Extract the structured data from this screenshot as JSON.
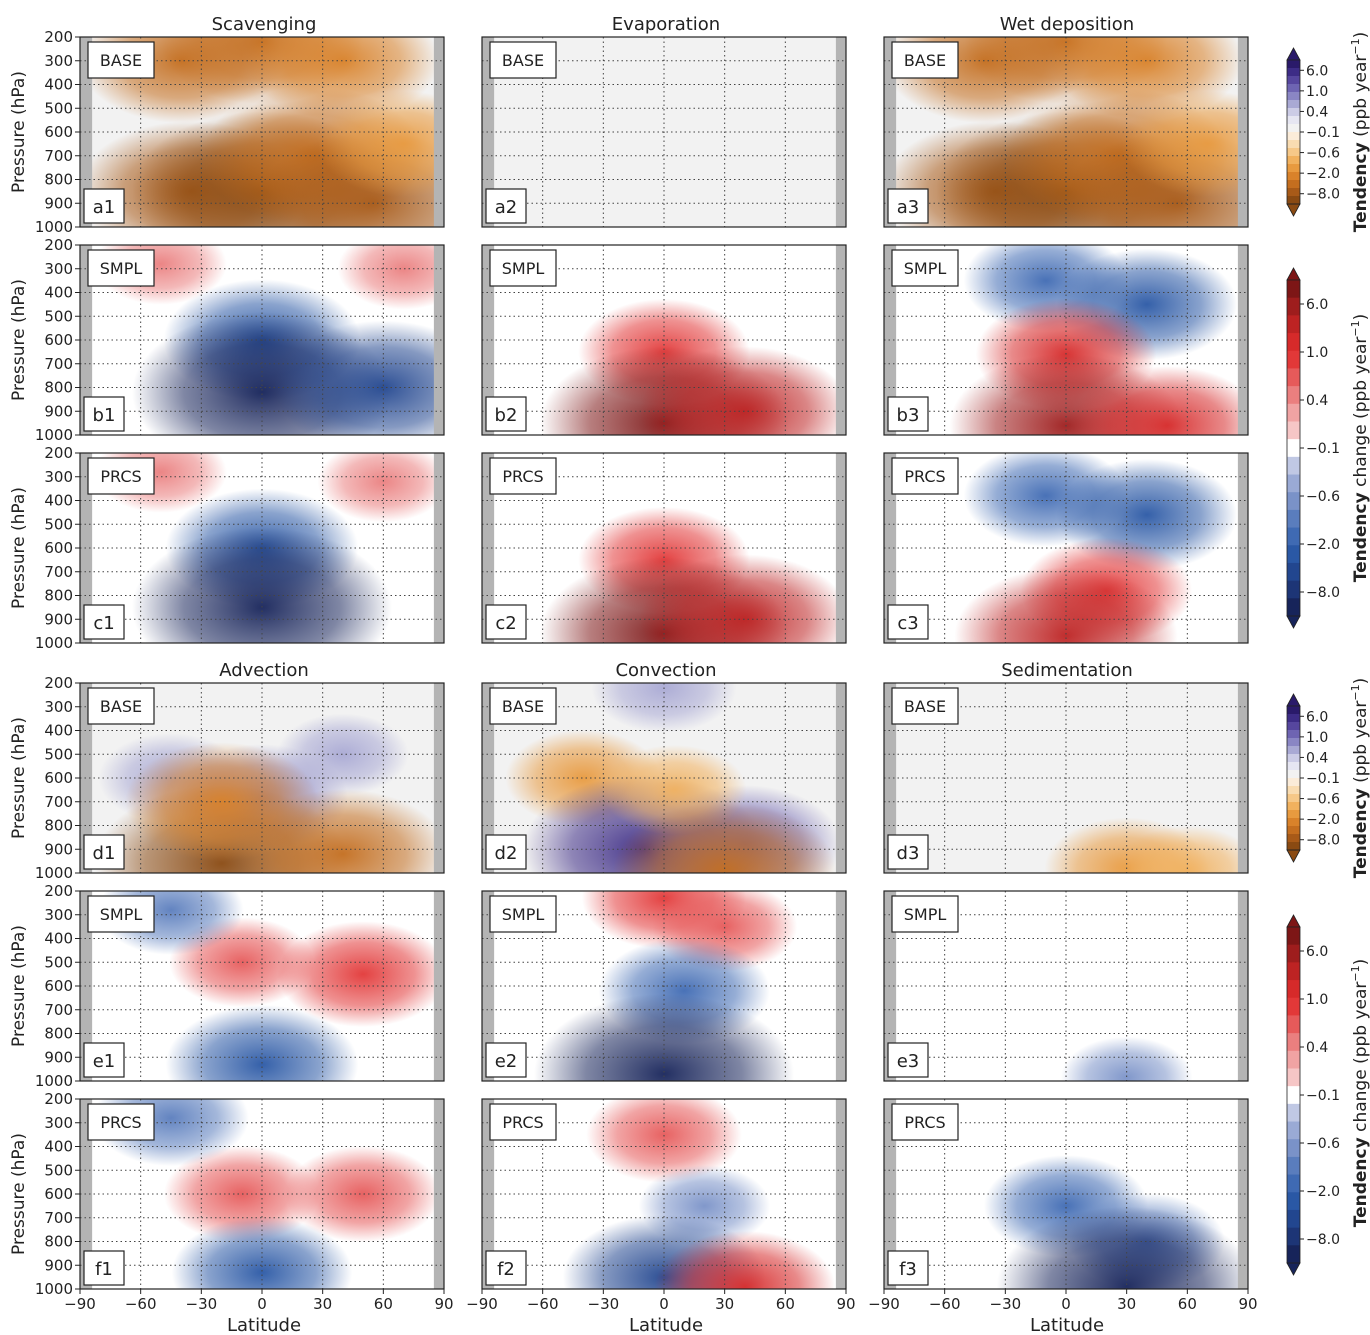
{
  "figure": {
    "x_axis_label": "Latitude",
    "y_axis_label": "Pressure (hPa)",
    "x_ticks": [
      -90,
      -60,
      -30,
      0,
      30,
      60,
      90
    ],
    "y_ticks": [
      200,
      300,
      400,
      500,
      600,
      700,
      800,
      900,
      1000
    ],
    "column_titles_top": [
      "Scavenging",
      "Evaporation",
      "Wet deposition"
    ],
    "column_titles_bottom": [
      "Advection",
      "Convection",
      "Sedimentation"
    ]
  },
  "colorbars": {
    "tendency_label_main": "Tendency",
    "tendency_label_unit": "(ppb year",
    "change_label_main": "Tendency",
    "change_label_rest": "change (ppb year",
    "unit_exponent": "−1",
    "unit_close": ")",
    "ticks": [
      "6.0",
      "1.0",
      "0.4",
      "−0.1",
      "−0.6",
      "−2.0",
      "−8.0"
    ],
    "tendency_colors": [
      "#8a4a12",
      "#a85a18",
      "#c46e1f",
      "#d9822a",
      "#e89a3f",
      "#f1b15e",
      "#f6c888",
      "#f9dcb1",
      "#fbecd9",
      "#f2f2f2",
      "#e6e6f2",
      "#cccce6",
      "#a9a9d4",
      "#8a86c4",
      "#6e64b2",
      "#56469e",
      "#3d2c86",
      "#2a1a6a"
    ],
    "change_colors": [
      "#17245a",
      "#1d3576",
      "#22468f",
      "#2a58a5",
      "#3f6ab3",
      "#5a7dbd",
      "#7a92c8",
      "#9aaad5",
      "#c0c8e4",
      "#ffffff",
      "#f6c6c6",
      "#f0a3a3",
      "#ea7f7f",
      "#e65a5a",
      "#e23838",
      "#d62a2a",
      "#bd2323",
      "#9e1d1d",
      "#7d1616"
    ]
  },
  "panels": [
    {
      "id": "a1",
      "scenario": "BASE",
      "scale": "tendency"
    },
    {
      "id": "a2",
      "scenario": "BASE",
      "scale": "tendency"
    },
    {
      "id": "a3",
      "scenario": "BASE",
      "scale": "tendency"
    },
    {
      "id": "b1",
      "scenario": "SMPL",
      "scale": "change"
    },
    {
      "id": "b2",
      "scenario": "SMPL",
      "scale": "change"
    },
    {
      "id": "b3",
      "scenario": "SMPL",
      "scale": "change"
    },
    {
      "id": "c1",
      "scenario": "PRCS",
      "scale": "change"
    },
    {
      "id": "c2",
      "scenario": "PRCS",
      "scale": "change"
    },
    {
      "id": "c3",
      "scenario": "PRCS",
      "scale": "change"
    },
    {
      "id": "d1",
      "scenario": "BASE",
      "scale": "tendency"
    },
    {
      "id": "d2",
      "scenario": "BASE",
      "scale": "tendency"
    },
    {
      "id": "d3",
      "scenario": "BASE",
      "scale": "tendency"
    },
    {
      "id": "e1",
      "scenario": "SMPL",
      "scale": "change"
    },
    {
      "id": "e2",
      "scenario": "SMPL",
      "scale": "change"
    },
    {
      "id": "e3",
      "scenario": "SMPL",
      "scale": "change"
    },
    {
      "id": "f1",
      "scenario": "PRCS",
      "scale": "change"
    },
    {
      "id": "f2",
      "scenario": "PRCS",
      "scale": "change"
    },
    {
      "id": "f3",
      "scenario": "PRCS",
      "scale": "change"
    }
  ],
  "chart_data": {
    "type": "heatmap",
    "title": "",
    "xlabel": "Latitude",
    "ylabel": "Pressure (hPa)",
    "xlim": [
      -90,
      90
    ],
    "ylim": [
      1000,
      200
    ],
    "y_axis_inverted": true,
    "grid": true,
    "colorbar_levels": [
      -8.0,
      -2.0,
      -0.6,
      -0.1,
      0.4,
      1.0,
      6.0
    ],
    "panels": {
      "a1": [
        {
          "lat": -40,
          "p": 300,
          "v": -2.5
        },
        {
          "lat": 0,
          "p": 220,
          "v": -2.5
        },
        {
          "lat": 40,
          "p": 300,
          "v": -2.0
        },
        {
          "lat": -35,
          "p": 850,
          "v": -4.5
        },
        {
          "lat": 0,
          "p": 850,
          "v": -9.0
        },
        {
          "lat": 25,
          "p": 700,
          "v": -4.0
        },
        {
          "lat": 55,
          "p": 900,
          "v": -5.0
        },
        {
          "lat": 70,
          "p": 650,
          "v": -1.2
        }
      ],
      "a2": [],
      "a3": [
        {
          "lat": -40,
          "p": 300,
          "v": -2.5
        },
        {
          "lat": 0,
          "p": 220,
          "v": -2.5
        },
        {
          "lat": 40,
          "p": 300,
          "v": -2.0
        },
        {
          "lat": -35,
          "p": 850,
          "v": -4.5
        },
        {
          "lat": 0,
          "p": 850,
          "v": -9.0
        },
        {
          "lat": 25,
          "p": 700,
          "v": -4.0
        },
        {
          "lat": 55,
          "p": 900,
          "v": -5.0
        },
        {
          "lat": 70,
          "p": 650,
          "v": -1.2
        }
      ],
      "b1": [
        {
          "lat": 0,
          "p": 600,
          "v": -2.2
        },
        {
          "lat": 0,
          "p": 820,
          "v": -9.0
        },
        {
          "lat": 60,
          "p": 800,
          "v": -3.5
        },
        {
          "lat": -50,
          "p": 280,
          "v": 0.4
        },
        {
          "lat": 70,
          "p": 300,
          "v": 0.4
        }
      ],
      "b2": [
        {
          "lat": 0,
          "p": 650,
          "v": 1.2
        },
        {
          "lat": 0,
          "p": 950,
          "v": 7.0
        },
        {
          "lat": 40,
          "p": 900,
          "v": 3.0
        }
      ],
      "b3": [
        {
          "lat": -10,
          "p": 350,
          "v": -1.0
        },
        {
          "lat": 40,
          "p": 450,
          "v": -1.5
        },
        {
          "lat": 0,
          "p": 660,
          "v": 1.5
        },
        {
          "lat": 0,
          "p": 960,
          "v": 5.0
        },
        {
          "lat": 50,
          "p": 960,
          "v": 2.0
        }
      ],
      "c1": [
        {
          "lat": 0,
          "p": 600,
          "v": -2.0
        },
        {
          "lat": 0,
          "p": 850,
          "v": -9.0
        },
        {
          "lat": -50,
          "p": 280,
          "v": 0.4
        },
        {
          "lat": 60,
          "p": 320,
          "v": 0.4
        }
      ],
      "c2": [
        {
          "lat": 0,
          "p": 650,
          "v": 1.2
        },
        {
          "lat": 0,
          "p": 960,
          "v": 7.0
        },
        {
          "lat": 40,
          "p": 900,
          "v": 3.0
        }
      ],
      "c3": [
        {
          "lat": -10,
          "p": 380,
          "v": -1.0
        },
        {
          "lat": 40,
          "p": 460,
          "v": -1.5
        },
        {
          "lat": 20,
          "p": 780,
          "v": 1.2
        },
        {
          "lat": 0,
          "p": 970,
          "v": 4.0
        }
      ],
      "d1": [
        {
          "lat": -45,
          "p": 600,
          "v": 0.6
        },
        {
          "lat": 0,
          "p": 680,
          "v": 1.2
        },
        {
          "lat": 40,
          "p": 500,
          "v": 0.4
        },
        {
          "lat": -20,
          "p": 960,
          "v": -8.0
        },
        {
          "lat": 40,
          "p": 920,
          "v": -3.0
        },
        {
          "lat": -20,
          "p": 700,
          "v": -2.0
        }
      ],
      "d2": [
        {
          "lat": -40,
          "p": 600,
          "v": -0.8
        },
        {
          "lat": -10,
          "p": 900,
          "v": 6.0
        },
        {
          "lat": 40,
          "p": 880,
          "v": 2.0
        },
        {
          "lat": 5,
          "p": 650,
          "v": -0.6
        },
        {
          "lat": 0,
          "p": 220,
          "v": 0.6
        },
        {
          "lat": 30,
          "p": 990,
          "v": -4.0
        }
      ],
      "d3": [
        {
          "lat": 30,
          "p": 980,
          "v": -1.0
        },
        {
          "lat": 60,
          "p": 990,
          "v": -0.6
        }
      ],
      "e1": [
        {
          "lat": -10,
          "p": 500,
          "v": 0.6
        },
        {
          "lat": 50,
          "p": 550,
          "v": 1.2
        },
        {
          "lat": 0,
          "p": 930,
          "v": -2.0
        },
        {
          "lat": -45,
          "p": 280,
          "v": -0.6
        }
      ],
      "e2": [
        {
          "lat": 0,
          "p": 230,
          "v": 1.0
        },
        {
          "lat": 30,
          "p": 350,
          "v": 0.6
        },
        {
          "lat": 10,
          "p": 620,
          "v": -1.2
        },
        {
          "lat": 0,
          "p": 970,
          "v": -9.0
        }
      ],
      "e3": [
        {
          "lat": 30,
          "p": 985,
          "v": -0.4
        }
      ],
      "f1": [
        {
          "lat": -10,
          "p": 600,
          "v": 0.8
        },
        {
          "lat": 50,
          "p": 600,
          "v": 0.8
        },
        {
          "lat": 0,
          "p": 930,
          "v": -1.5
        },
        {
          "lat": -45,
          "p": 280,
          "v": -0.8
        }
      ],
      "f2": [
        {
          "lat": 0,
          "p": 350,
          "v": 0.8
        },
        {
          "lat": 20,
          "p": 650,
          "v": -0.4
        },
        {
          "lat": 0,
          "p": 950,
          "v": -2.5
        },
        {
          "lat": 40,
          "p": 990,
          "v": 1.5
        }
      ],
      "f3": [
        {
          "lat": 0,
          "p": 650,
          "v": -1.0
        },
        {
          "lat": 40,
          "p": 800,
          "v": -0.8
        },
        {
          "lat": 30,
          "p": 990,
          "v": -9.0
        }
      ]
    }
  }
}
